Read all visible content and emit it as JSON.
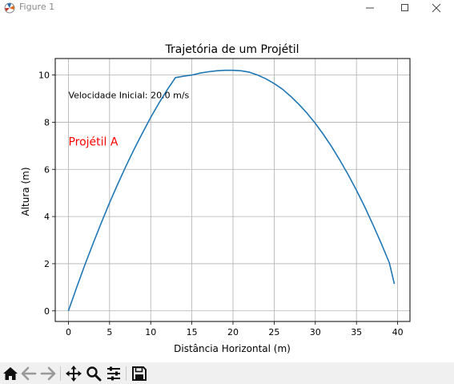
{
  "window": {
    "title": "Figure 1",
    "controls": [
      "minimize",
      "maximize",
      "close"
    ]
  },
  "toolbar": {
    "buttons": [
      {
        "name": "home-button",
        "icon": "home-icon"
      },
      {
        "name": "back-button",
        "icon": "arrow-left-icon"
      },
      {
        "name": "forward-button",
        "icon": "arrow-right-icon"
      },
      {
        "name": "pan-button",
        "icon": "move-icon"
      },
      {
        "name": "zoom-button",
        "icon": "magnifier-icon"
      },
      {
        "name": "configure-subplots-button",
        "icon": "sliders-icon"
      },
      {
        "name": "save-button",
        "icon": "floppy-disk-icon"
      }
    ]
  },
  "chart_data": {
    "type": "line",
    "title": "Trajetória de um Projétil",
    "xlabel": "Distância Horizontal (m)",
    "ylabel": "Altura (m)",
    "xlim": [
      -1.6,
      41.5
    ],
    "ylim": [
      -0.45,
      10.7
    ],
    "xticks": [
      0,
      5,
      10,
      15,
      20,
      25,
      30,
      35,
      40
    ],
    "yticks": [
      0,
      2,
      4,
      6,
      8,
      10
    ],
    "grid": true,
    "line_color": "#1f77b4",
    "series": [
      {
        "x": [
          0,
          1,
          2,
          3,
          4,
          5,
          6,
          7,
          8,
          9,
          10,
          11,
          12,
          13,
          14,
          15,
          16,
          17,
          18,
          19,
          20,
          21,
          22,
          23,
          24,
          25,
          26,
          27,
          28,
          29,
          30,
          31,
          32,
          33,
          34,
          35,
          36,
          37,
          38,
          39,
          39.6
        ],
        "y": [
          0,
          0.99,
          1.95,
          2.86,
          3.74,
          4.58,
          5.38,
          6.14,
          6.87,
          7.55,
          8.2,
          8.81,
          9.37,
          9.89,
          9.95,
          10.0,
          10.08,
          10.14,
          10.18,
          10.2,
          10.2,
          10.18,
          10.12,
          10.0,
          9.84,
          9.64,
          9.4,
          9.1,
          8.76,
          8.38,
          7.95,
          7.47,
          6.95,
          6.38,
          5.77,
          5.11,
          4.41,
          3.66,
          2.87,
          2.03,
          1.14
        ]
      }
    ],
    "annotations": [
      {
        "text": "Velocidade Inicial: 20.0 m/s",
        "x": 0,
        "y": 9.15,
        "color": "#000000"
      },
      {
        "text": "Projétil A",
        "x": 0,
        "y": 7.15,
        "color": "#ff0000"
      }
    ]
  }
}
